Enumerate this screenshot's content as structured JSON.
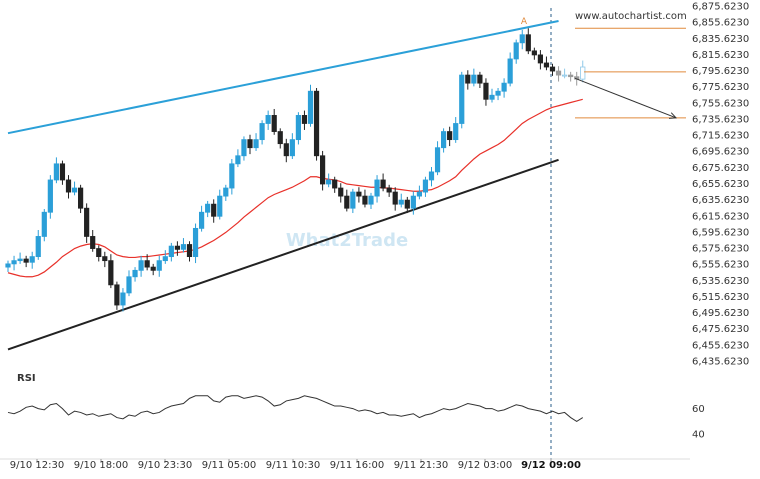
{
  "chart_data": {
    "type": "candlestick",
    "source_label": "www.autochartist.com",
    "watermark": "What2Trade",
    "point_label": "A",
    "rsi_label": "RSI",
    "price_ticks": [
      "6,875.6230",
      "6,855.6230",
      "6,835.6230",
      "6,815.6230",
      "6,795.6230",
      "6,775.6230",
      "6,755.6230",
      "6,735.6230",
      "6,715.6230",
      "6,695.6230",
      "6,675.6230",
      "6,655.6230",
      "6,635.6230",
      "6,615.6230",
      "6,595.6230",
      "6,575.6230",
      "6,555.6230",
      "6,535.6230",
      "6,515.6230",
      "6,495.6230",
      "6,475.6230",
      "6,455.6230",
      "6,435.6230"
    ],
    "price_range": [
      6435.623,
      6875.623
    ],
    "rsi_ticks": [
      "60",
      "40"
    ],
    "rsi_range": [
      30,
      80
    ],
    "x_ticks": [
      "9/10 12:30",
      "9/10 18:00",
      "9/10 23:30",
      "9/11 05:00",
      "9/11 10:30",
      "9/11 16:00",
      "9/11 21:30",
      "9/12 03:00",
      "9/12 09:00"
    ],
    "x_highlight": "9/12 09:00",
    "upper_channel": [
      [
        0,
        6718
      ],
      [
        91,
        6857
      ]
    ],
    "lower_channel": [
      [
        0,
        6450
      ],
      [
        91,
        6685
      ]
    ],
    "forecast_arrow": [
      [
        92,
        6786
      ],
      [
        110,
        6737
      ]
    ],
    "resistance_level": 6848,
    "current_level": 6794,
    "target_level": 6737,
    "close": [
      6556,
      6560,
      6562,
      6558,
      6565,
      6590,
      6620,
      6660,
      6680,
      6660,
      6645,
      6650,
      6625,
      6590,
      6575,
      6565,
      6560,
      6530,
      6505,
      6520,
      6540,
      6548,
      6560,
      6552,
      6548,
      6560,
      6565,
      6578,
      6574,
      6580,
      6565,
      6600,
      6620,
      6630,
      6615,
      6640,
      6650,
      6680,
      6690,
      6710,
      6700,
      6710,
      6730,
      6740,
      6720,
      6705,
      6690,
      6710,
      6740,
      6730,
      6770,
      6690,
      6655,
      6660,
      6650,
      6640,
      6625,
      6645,
      6640,
      6630,
      6640,
      6660,
      6650,
      6645,
      6630,
      6635,
      6625,
      6640,
      6645,
      6660,
      6670,
      6700,
      6720,
      6710,
      6730,
      6790,
      6780,
      6790,
      6780,
      6760,
      6765,
      6770,
      6780,
      6810,
      6830,
      6840,
      6820,
      6815,
      6805,
      6800,
      6795,
      6790,
      6790,
      6788,
      6785,
      6800
    ],
    "sma": [
      6545,
      6543,
      6541,
      6540,
      6540,
      6542,
      6546,
      6552,
      6558,
      6565,
      6570,
      6575,
      6578,
      6580,
      6581,
      6580,
      6577,
      6572,
      6567,
      6565,
      6564,
      6564,
      6565,
      6565,
      6566,
      6567,
      6568,
      6569,
      6570,
      6571,
      6572,
      6574,
      6577,
      6581,
      6585,
      6590,
      6595,
      6601,
      6607,
      6614,
      6620,
      6626,
      6632,
      6638,
      6642,
      6645,
      6648,
      6651,
      6655,
      6659,
      6664,
      6664,
      6662,
      6661,
      6660,
      6658,
      6655,
      6654,
      6653,
      6652,
      6651,
      6651,
      6650,
      6650,
      6649,
      6648,
      6647,
      6646,
      6646,
      6647,
      6648,
      6651,
      6655,
      6659,
      6664,
      6672,
      6679,
      6686,
      6692,
      6696,
      6700,
      6704,
      6709,
      6716,
      6723,
      6730,
      6735,
      6739,
      6743,
      6747,
      6750,
      6752,
      6754,
      6756,
      6758,
      6760
    ],
    "rsi": [
      57,
      56,
      58,
      61,
      62,
      60,
      59,
      63,
      64,
      60,
      55,
      58,
      57,
      55,
      56,
      54,
      55,
      56,
      53,
      52,
      55,
      54,
      57,
      58,
      56,
      57,
      60,
      62,
      63,
      64,
      68,
      70,
      70,
      70,
      66,
      65,
      69,
      70,
      70,
      68,
      69,
      70,
      69,
      66,
      62,
      63,
      66,
      67,
      68,
      70,
      69,
      68,
      66,
      64,
      62,
      62,
      61,
      60,
      58,
      59,
      58,
      56,
      57,
      55,
      55,
      54,
      55,
      56,
      53,
      55,
      56,
      58,
      60,
      59,
      60,
      62,
      64,
      63,
      62,
      60,
      60,
      58,
      59,
      61,
      63,
      62,
      60,
      59,
      58,
      56,
      58,
      56,
      57,
      53,
      50,
      53
    ]
  }
}
